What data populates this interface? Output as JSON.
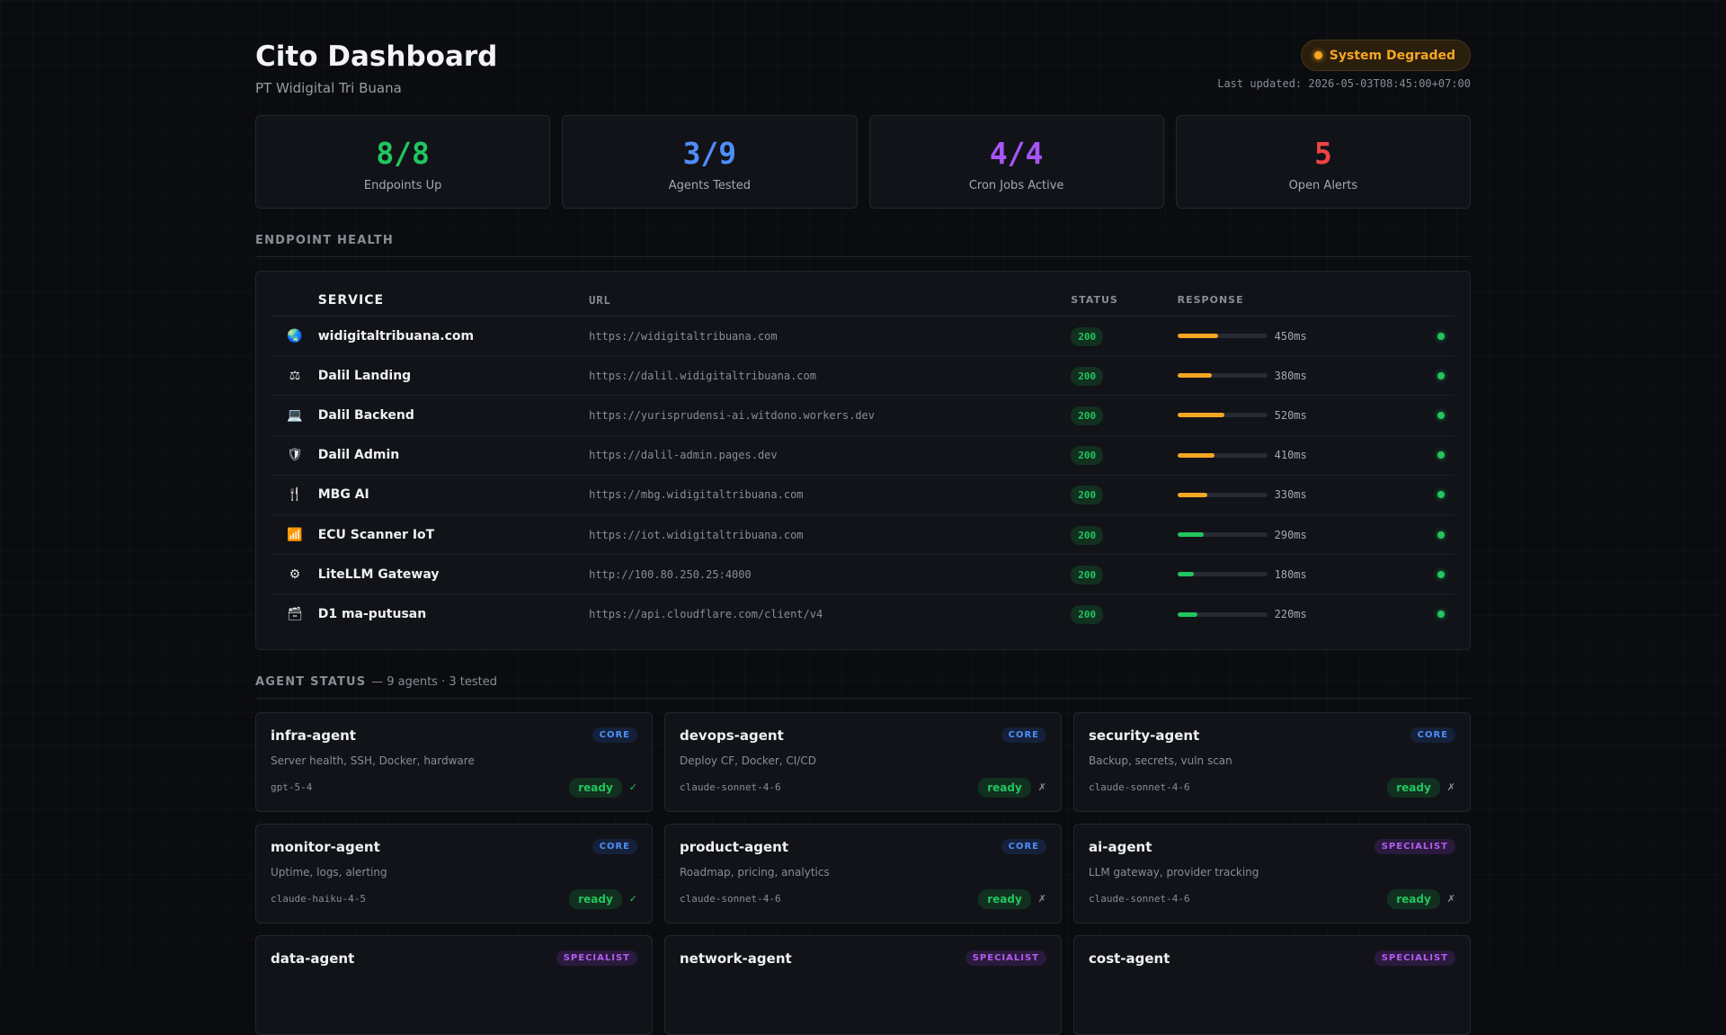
{
  "header": {
    "title": "Cito Dashboard",
    "subtitle": "PT Widigital Tri Buana",
    "system_status": "System Degraded",
    "last_updated_label": "Last updated: 2026-05-03T08:45:00+07:00"
  },
  "stats": [
    {
      "value": "8/8",
      "label": "Endpoints Up",
      "color": "#22c55e"
    },
    {
      "value": "3/9",
      "label": "Agents Tested",
      "color": "#4f8ef7"
    },
    {
      "value": "4/4",
      "label": "Cron Jobs Active",
      "color": "#a855f7"
    },
    {
      "value": "5",
      "label": "Open Alerts",
      "color": "#ef4444"
    }
  ],
  "endpoint_section": {
    "title": "ENDPOINT HEALTH",
    "columns": {
      "service": "SERVICE",
      "url": "URL",
      "status": "STATUS",
      "response": "RESPONSE"
    },
    "rows": [
      {
        "icon": "globe-icon",
        "glyph": "🌏",
        "service": "widigitaltribuana.com",
        "url": "https://widigitaltribuana.com",
        "status": "200",
        "response": "450ms",
        "response_ms": 450,
        "bar_color": "#f5a623"
      },
      {
        "icon": "scales-icon",
        "glyph": "⚖",
        "service": "Dalil Landing",
        "url": "https://dalil.widigitaltribuana.com",
        "status": "200",
        "response": "380ms",
        "response_ms": 380,
        "bar_color": "#f5a623"
      },
      {
        "icon": "laptop-icon",
        "glyph": "💻",
        "service": "Dalil Backend",
        "url": "https://yurisprudensi-ai.witdono.workers.dev",
        "status": "200",
        "response": "520ms",
        "response_ms": 520,
        "bar_color": "#f5a623"
      },
      {
        "icon": "shield-icon",
        "glyph": "🛡",
        "service": "Dalil Admin",
        "url": "https://dalil-admin.pages.dev",
        "status": "200",
        "response": "410ms",
        "response_ms": 410,
        "bar_color": "#f5a623"
      },
      {
        "icon": "fork-knife-icon",
        "glyph": "🍴",
        "service": "MBG AI",
        "url": "https://mbg.widigitaltribuana.com",
        "status": "200",
        "response": "330ms",
        "response_ms": 330,
        "bar_color": "#f5a623"
      },
      {
        "icon": "signal-icon",
        "glyph": "📶",
        "service": "ECU Scanner IoT",
        "url": "https://iot.widigitaltribuana.com",
        "status": "200",
        "response": "290ms",
        "response_ms": 290,
        "bar_color": "#22c55e"
      },
      {
        "icon": "gear-icon",
        "glyph": "⚙",
        "service": "LiteLLM Gateway",
        "url": "http://100.80.250.25:4000",
        "status": "200",
        "response": "180ms",
        "response_ms": 180,
        "bar_color": "#22c55e"
      },
      {
        "icon": "file-box-icon",
        "glyph": "🗃",
        "service": "D1 ma-putusan",
        "url": "https://api.cloudflare.com/client/v4",
        "status": "200",
        "response": "220ms",
        "response_ms": 220,
        "bar_color": "#22c55e"
      }
    ]
  },
  "agent_section": {
    "title": "AGENT STATUS",
    "subtitle": "— 9 agents · 3 tested",
    "agents": [
      {
        "name": "infra-agent",
        "tier": "CORE",
        "tier_kind": "core",
        "desc": "Server health, SSH, Docker, hardware",
        "model": "gpt-5-4",
        "state": "ready",
        "tested": "✓",
        "tested_kind": "pass"
      },
      {
        "name": "devops-agent",
        "tier": "CORE",
        "tier_kind": "core",
        "desc": "Deploy CF, Docker, CI/CD",
        "model": "claude-sonnet-4-6",
        "state": "ready",
        "tested": "✗",
        "tested_kind": "fail"
      },
      {
        "name": "security-agent",
        "tier": "CORE",
        "tier_kind": "core",
        "desc": "Backup, secrets, vuln scan",
        "model": "claude-sonnet-4-6",
        "state": "ready",
        "tested": "✗",
        "tested_kind": "fail"
      },
      {
        "name": "monitor-agent",
        "tier": "CORE",
        "tier_kind": "core",
        "desc": "Uptime, logs, alerting",
        "model": "claude-haiku-4-5",
        "state": "ready",
        "tested": "✓",
        "tested_kind": "pass"
      },
      {
        "name": "product-agent",
        "tier": "CORE",
        "tier_kind": "core",
        "desc": "Roadmap, pricing, analytics",
        "model": "claude-sonnet-4-6",
        "state": "ready",
        "tested": "✗",
        "tested_kind": "fail"
      },
      {
        "name": "ai-agent",
        "tier": "SPECIALIST",
        "tier_kind": "specialist",
        "desc": "LLM gateway, provider tracking",
        "model": "claude-sonnet-4-6",
        "state": "ready",
        "tested": "✗",
        "tested_kind": "fail"
      },
      {
        "name": "data-agent",
        "tier": "SPECIALIST",
        "tier_kind": "specialist",
        "desc": "",
        "model": "",
        "state": "",
        "tested": "",
        "tested_kind": ""
      },
      {
        "name": "network-agent",
        "tier": "SPECIALIST",
        "tier_kind": "specialist",
        "desc": "",
        "model": "",
        "state": "",
        "tested": "",
        "tested_kind": ""
      },
      {
        "name": "cost-agent",
        "tier": "SPECIALIST",
        "tier_kind": "specialist",
        "desc": "",
        "model": "",
        "state": "",
        "tested": "",
        "tested_kind": ""
      }
    ]
  }
}
